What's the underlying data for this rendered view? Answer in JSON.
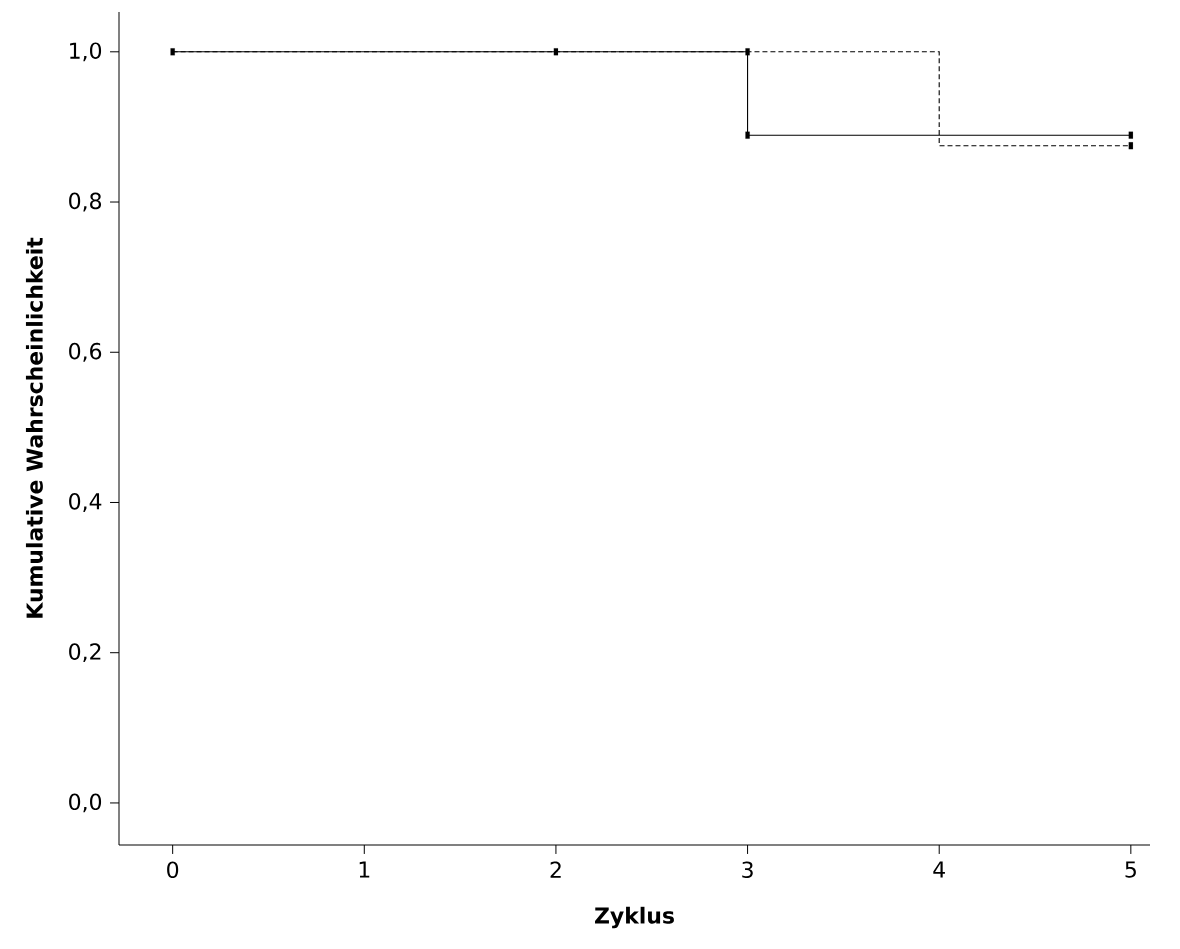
{
  "chart_data": {
    "type": "step",
    "xlabel": "Zyklus",
    "ylabel": "Kumulative Wahrscheinlichkeit",
    "xlim": [
      -0.28,
      5.1
    ],
    "ylim": [
      -0.056,
      1.053
    ],
    "xticks": [
      0,
      1,
      2,
      3,
      4,
      5
    ],
    "yticks": [
      {
        "value": 0,
        "label": "0,0"
      },
      {
        "value": 0.2,
        "label": "0,2"
      },
      {
        "value": 0.4,
        "label": "0,4"
      },
      {
        "value": 0.6,
        "label": "0,6"
      },
      {
        "value": 0.8,
        "label": "0,8"
      },
      {
        "value": 1,
        "label": "1,0"
      }
    ],
    "grid": false,
    "series": [
      {
        "color": "#000000",
        "line_style": "solid",
        "x": [
          0,
          3,
          5
        ],
        "values": [
          1,
          0.889,
          0.889
        ]
      },
      {
        "color": "#000000",
        "line_style": "dashed",
        "x": [
          0,
          4,
          5
        ],
        "values": [
          1,
          0.875,
          0.875
        ]
      },
      {
        "type": "scatter",
        "color": "#000000",
        "marker": "square",
        "x": [
          0,
          2,
          3,
          3,
          5,
          5
        ],
        "values": [
          1,
          1,
          1,
          0.889,
          0.889,
          0.875
        ]
      }
    ]
  }
}
